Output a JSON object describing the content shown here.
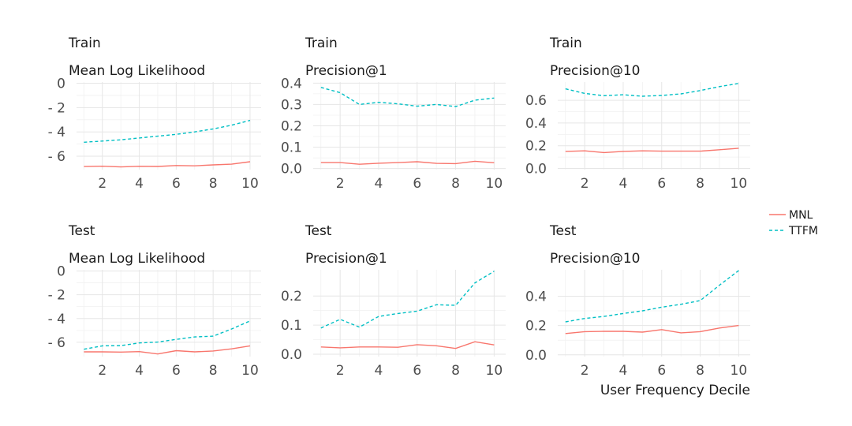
{
  "x_axis_title": "User Frequency Decile",
  "series_colors": {
    "MNL": "#F8766D",
    "TTFM": "#00BFC4"
  },
  "legend": [
    {
      "name": "MNL",
      "color": "#F8766D",
      "dash": ""
    },
    {
      "name": "TTFM",
      "color": "#00BFC4",
      "dash": "4,3"
    }
  ],
  "chart_data": [
    {
      "type": "line",
      "split": "Train",
      "metric": "Mean Log Likelihood",
      "x": [
        1,
        2,
        3,
        4,
        5,
        6,
        7,
        8,
        9,
        10
      ],
      "xticks": [
        2,
        4,
        6,
        8,
        10
      ],
      "xlim": [
        0.6,
        10.6
      ],
      "yticks": [
        0,
        -2,
        -4,
        -6
      ],
      "ytick_labels": [
        "0",
        "- 2",
        "- 4",
        "- 6"
      ],
      "ylim": [
        -7.1,
        0.1
      ],
      "series": [
        {
          "name": "MNL",
          "values": [
            -6.85,
            -6.82,
            -6.88,
            -6.83,
            -6.84,
            -6.76,
            -6.79,
            -6.71,
            -6.65,
            -6.45
          ]
        },
        {
          "name": "TTFM",
          "values": [
            -4.85,
            -4.75,
            -4.65,
            -4.5,
            -4.35,
            -4.2,
            -4.0,
            -3.75,
            -3.45,
            -3.05
          ]
        }
      ]
    },
    {
      "type": "line",
      "split": "Train",
      "metric": "Precision@1",
      "x": [
        1,
        2,
        3,
        4,
        5,
        6,
        7,
        8,
        9,
        10
      ],
      "xticks": [
        2,
        4,
        6,
        8,
        10
      ],
      "xlim": [
        0.6,
        10.6
      ],
      "yticks": [
        0,
        0.1,
        0.2,
        0.3,
        0.4
      ],
      "ytick_labels": [
        "0.0",
        "0.1",
        "0.2",
        "0.3",
        "0.4"
      ],
      "ylim": [
        -0.005,
        0.405
      ],
      "series": [
        {
          "name": "MNL",
          "values": [
            0.028,
            0.028,
            0.02,
            0.025,
            0.028,
            0.032,
            0.024,
            0.023,
            0.034,
            0.027
          ]
        },
        {
          "name": "TTFM",
          "values": [
            0.38,
            0.355,
            0.3,
            0.31,
            0.303,
            0.292,
            0.3,
            0.29,
            0.32,
            0.33
          ]
        }
      ]
    },
    {
      "type": "line",
      "split": "Train",
      "metric": "Precision@10",
      "x": [
        1,
        2,
        3,
        4,
        5,
        6,
        7,
        8,
        9,
        10
      ],
      "xticks": [
        2,
        4,
        6,
        8,
        10
      ],
      "xlim": [
        0.6,
        10.6
      ],
      "yticks": [
        0,
        0.2,
        0.4,
        0.6
      ],
      "ytick_labels": [
        "0.0",
        "0.2",
        "0.4",
        "0.6"
      ],
      "ylim": [
        -0.01,
        0.76
      ],
      "series": [
        {
          "name": "MNL",
          "values": [
            0.15,
            0.155,
            0.14,
            0.15,
            0.155,
            0.152,
            0.152,
            0.152,
            0.165,
            0.178
          ]
        },
        {
          "name": "TTFM",
          "values": [
            0.7,
            0.66,
            0.64,
            0.648,
            0.635,
            0.642,
            0.656,
            0.685,
            0.72,
            0.748
          ]
        }
      ]
    },
    {
      "type": "line",
      "split": "Test",
      "metric": "Mean Log Likelihood",
      "x": [
        1,
        2,
        3,
        4,
        5,
        6,
        7,
        8,
        9,
        10
      ],
      "xticks": [
        2,
        4,
        6,
        8,
        10
      ],
      "xlim": [
        0.6,
        10.6
      ],
      "yticks": [
        0,
        -2,
        -4,
        -6
      ],
      "ytick_labels": [
        "0",
        "- 2",
        "- 4",
        "- 6"
      ],
      "ylim": [
        -7.2,
        0.1
      ],
      "series": [
        {
          "name": "MNL",
          "values": [
            -6.8,
            -6.8,
            -6.82,
            -6.78,
            -6.98,
            -6.7,
            -6.8,
            -6.73,
            -6.55,
            -6.3
          ]
        },
        {
          "name": "TTFM",
          "values": [
            -6.58,
            -6.3,
            -6.28,
            -6.05,
            -5.98,
            -5.75,
            -5.55,
            -5.48,
            -4.88,
            -4.2
          ]
        }
      ]
    },
    {
      "type": "line",
      "split": "Test",
      "metric": "Precision@1",
      "x": [
        1,
        2,
        3,
        4,
        5,
        6,
        7,
        8,
        9,
        10
      ],
      "xticks": [
        2,
        4,
        6,
        8,
        10
      ],
      "xlim": [
        0.6,
        10.6
      ],
      "yticks": [
        0,
        0.1,
        0.2
      ],
      "ytick_labels": [
        "0.0",
        "0.1",
        "0.2"
      ],
      "ylim": [
        -0.008,
        0.29
      ],
      "series": [
        {
          "name": "MNL",
          "values": [
            0.025,
            0.022,
            0.025,
            0.025,
            0.024,
            0.033,
            0.029,
            0.02,
            0.043,
            0.032
          ]
        },
        {
          "name": "TTFM",
          "values": [
            0.09,
            0.12,
            0.093,
            0.13,
            0.14,
            0.148,
            0.17,
            0.168,
            0.245,
            0.285
          ]
        }
      ]
    },
    {
      "type": "line",
      "split": "Test",
      "metric": "Precision@10",
      "x": [
        1,
        2,
        3,
        4,
        5,
        6,
        7,
        8,
        9,
        10
      ],
      "xticks": [
        2,
        4,
        6,
        8,
        10
      ],
      "xlim": [
        0.6,
        10.6
      ],
      "yticks": [
        0,
        0.2,
        0.4
      ],
      "ytick_labels": [
        "0.0",
        "0.2",
        "0.4"
      ],
      "ylim": [
        -0.012,
        0.58
      ],
      "series": [
        {
          "name": "MNL",
          "values": [
            0.145,
            0.158,
            0.16,
            0.16,
            0.155,
            0.172,
            0.15,
            0.158,
            0.183,
            0.2
          ]
        },
        {
          "name": "TTFM",
          "values": [
            0.225,
            0.248,
            0.262,
            0.282,
            0.3,
            0.325,
            0.345,
            0.37,
            0.475,
            0.575
          ]
        }
      ]
    }
  ]
}
